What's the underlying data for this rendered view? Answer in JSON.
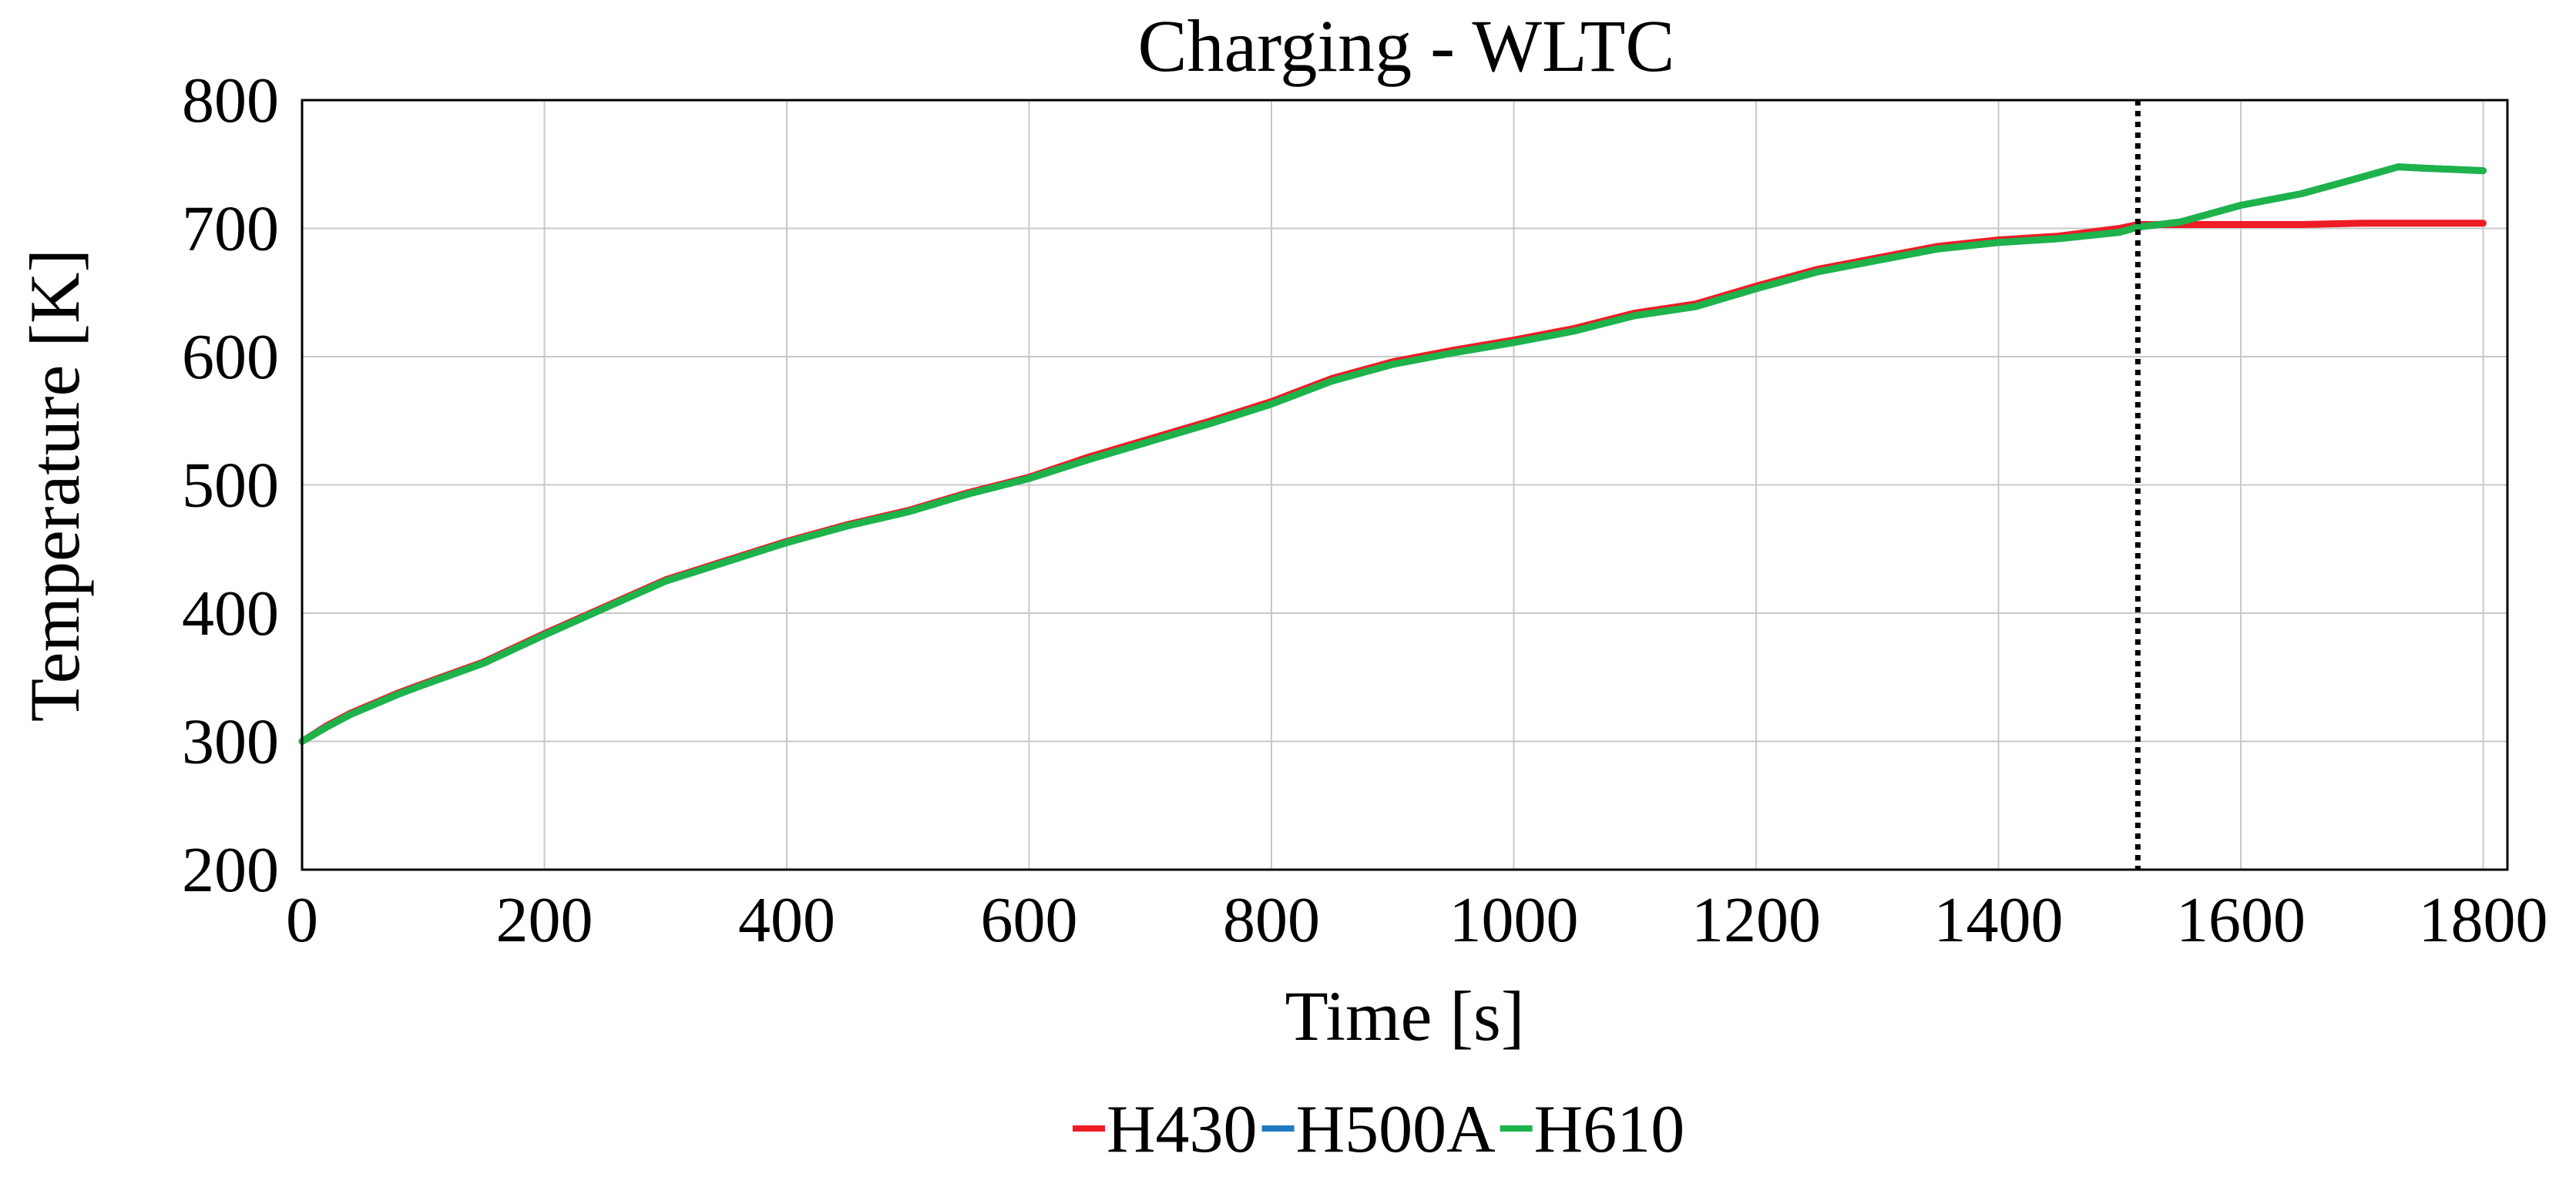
{
  "chart_data": {
    "type": "line",
    "title": "Charging - WLTC",
    "xlabel": "Time [s]",
    "ylabel": "Temperature [K]",
    "xlim": [
      0,
      1820
    ],
    "ylim": [
      200,
      800
    ],
    "xticks": [
      0,
      200,
      400,
      600,
      800,
      1000,
      1200,
      1400,
      1600,
      1800
    ],
    "yticks": [
      200,
      300,
      400,
      500,
      600,
      700,
      800
    ],
    "grid": true,
    "legend_position": "bottom-center",
    "vertical_marker": {
      "x": 1515,
      "style": "dotted",
      "color": "#000000"
    },
    "series": [
      {
        "name": "H430",
        "color": "#ee1c25",
        "x": [
          0,
          20,
          40,
          60,
          80,
          100,
          150,
          200,
          250,
          300,
          350,
          400,
          450,
          500,
          550,
          600,
          650,
          700,
          750,
          800,
          850,
          900,
          950,
          1000,
          1050,
          1100,
          1150,
          1200,
          1250,
          1300,
          1350,
          1400,
          1450,
          1500,
          1515,
          1550,
          1600,
          1650,
          1700,
          1750,
          1800
        ],
        "y": [
          300,
          312,
          322,
          330,
          338,
          345,
          362,
          384,
          405,
          426,
          441,
          456,
          469,
          480,
          494,
          506,
          522,
          536,
          550,
          565,
          583,
          596,
          605,
          613,
          622,
          634,
          641,
          655,
          668,
          677,
          686,
          691,
          694,
          700,
          703,
          703,
          703,
          703,
          704,
          704,
          704
        ]
      },
      {
        "name": "H500A",
        "color": "#1f7ac2",
        "x": [
          0,
          20,
          40,
          60,
          80,
          100,
          150,
          200,
          250,
          300,
          350,
          400,
          450,
          500,
          550,
          600,
          650,
          700,
          750,
          800,
          850,
          900,
          950,
          1000,
          1050,
          1100,
          1150,
          1200,
          1250,
          1300,
          1350,
          1400,
          1450,
          1500,
          1515,
          1550,
          1600,
          1650,
          1700,
          1730,
          1750,
          1800
        ],
        "y": [
          300,
          311,
          321,
          329,
          337,
          344,
          361,
          383,
          404,
          425,
          440,
          455,
          468,
          479,
          493,
          505,
          520,
          534,
          548,
          563,
          581,
          594,
          603,
          611,
          620,
          632,
          639,
          653,
          666,
          675,
          684,
          689,
          692,
          697,
          701,
          705,
          718,
          727,
          740,
          748,
          747,
          745
        ]
      },
      {
        "name": "H610",
        "color": "#1db34a",
        "x": [
          0,
          20,
          40,
          60,
          80,
          100,
          150,
          200,
          250,
          300,
          350,
          400,
          450,
          500,
          550,
          600,
          650,
          700,
          750,
          800,
          850,
          900,
          950,
          1000,
          1050,
          1100,
          1150,
          1200,
          1250,
          1300,
          1350,
          1400,
          1450,
          1500,
          1515,
          1550,
          1600,
          1650,
          1700,
          1730,
          1750,
          1800
        ],
        "y": [
          300,
          311,
          321,
          329,
          337,
          344,
          361,
          383,
          404,
          425,
          440,
          455,
          468,
          479,
          493,
          505,
          520,
          534,
          548,
          563,
          581,
          594,
          603,
          611,
          620,
          632,
          639,
          653,
          666,
          675,
          684,
          689,
          692,
          697,
          701,
          705,
          718,
          727,
          740,
          748,
          747,
          745
        ]
      }
    ]
  }
}
